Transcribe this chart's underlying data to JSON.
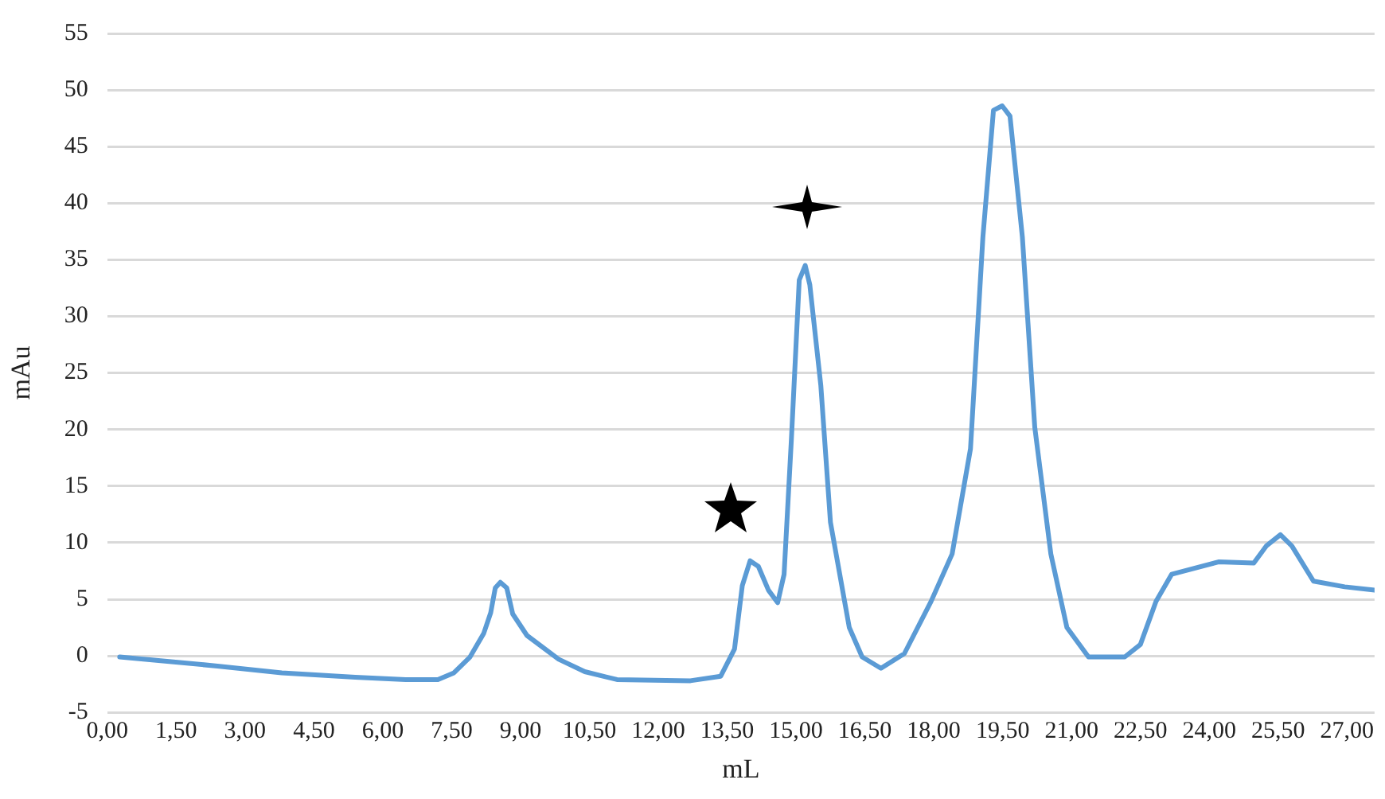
{
  "chart_data": {
    "type": "line",
    "xlabel": "mL",
    "ylabel": "mAu",
    "x": [
      0.27,
      2.4,
      3.8,
      5.4,
      6.5,
      7.2,
      7.55,
      7.9,
      8.2,
      8.35,
      8.45,
      8.56,
      8.7,
      8.83,
      9.14,
      9.83,
      10.4,
      11.1,
      12.7,
      13.36,
      13.66,
      13.83,
      14.0,
      14.18,
      14.4,
      14.6,
      14.74,
      14.9,
      15.07,
      15.2,
      15.3,
      15.54,
      15.75,
      16.16,
      16.44,
      16.85,
      17.36,
      17.94,
      18.4,
      18.8,
      19.07,
      19.3,
      19.49,
      19.66,
      19.93,
      20.2,
      20.55,
      20.9,
      21.37,
      22.16,
      22.5,
      22.84,
      23.18,
      24.2,
      24.97,
      25.24,
      25.55,
      25.8,
      26.27,
      26.95,
      27.6
    ],
    "series": [
      {
        "color": "#5b9bd5",
        "values": [
          -0.1,
          -0.9,
          -1.5,
          -1.9,
          -2.1,
          -2.1,
          -1.5,
          -0.1,
          2.0,
          3.8,
          6.0,
          6.5,
          6.0,
          3.7,
          1.8,
          -0.3,
          -1.4,
          -2.1,
          -2.2,
          -1.8,
          0.6,
          6.2,
          8.4,
          7.9,
          5.8,
          4.7,
          7.2,
          19.2,
          33.2,
          34.5,
          32.8,
          23.9,
          11.8,
          2.5,
          -0.1,
          -1.1,
          0.2,
          4.8,
          9.0,
          18.3,
          37.0,
          48.2,
          48.6,
          47.7,
          37.0,
          20.2,
          9.0,
          2.5,
          -0.1,
          -0.1,
          1.0,
          4.8,
          7.2,
          8.3,
          8.2,
          9.7,
          10.7,
          9.7,
          6.6,
          6.1,
          5.8
        ]
      }
    ],
    "xlim": [
      0,
      27.6
    ],
    "xticks": [
      {
        "value": 0,
        "label": "0,00"
      },
      {
        "value": 1.5,
        "label": "1,50"
      },
      {
        "value": 3,
        "label": "3,00"
      },
      {
        "value": 4.5,
        "label": "4,50"
      },
      {
        "value": 6,
        "label": "6,00"
      },
      {
        "value": 7.5,
        "label": "7,50"
      },
      {
        "value": 9,
        "label": "9,00"
      },
      {
        "value": 10.5,
        "label": "10,50"
      },
      {
        "value": 12,
        "label": "12,00"
      },
      {
        "value": 13.5,
        "label": "13,50"
      },
      {
        "value": 15,
        "label": "15,00"
      },
      {
        "value": 16.5,
        "label": "16,50"
      },
      {
        "value": 18,
        "label": "18,00"
      },
      {
        "value": 19.5,
        "label": "19,50"
      },
      {
        "value": 21,
        "label": "21,00"
      },
      {
        "value": 22.5,
        "label": "22,50"
      },
      {
        "value": 24,
        "label": "24,00"
      },
      {
        "value": 25.5,
        "label": "25,50"
      },
      {
        "value": 27,
        "label": "27,00"
      }
    ],
    "ylim": [
      -5,
      55
    ],
    "yticks": [
      -5,
      0,
      5,
      10,
      15,
      20,
      25,
      30,
      35,
      40,
      45,
      50,
      55
    ],
    "grid": "y",
    "legend": false,
    "marker": "none",
    "line_style": "solid"
  }
}
